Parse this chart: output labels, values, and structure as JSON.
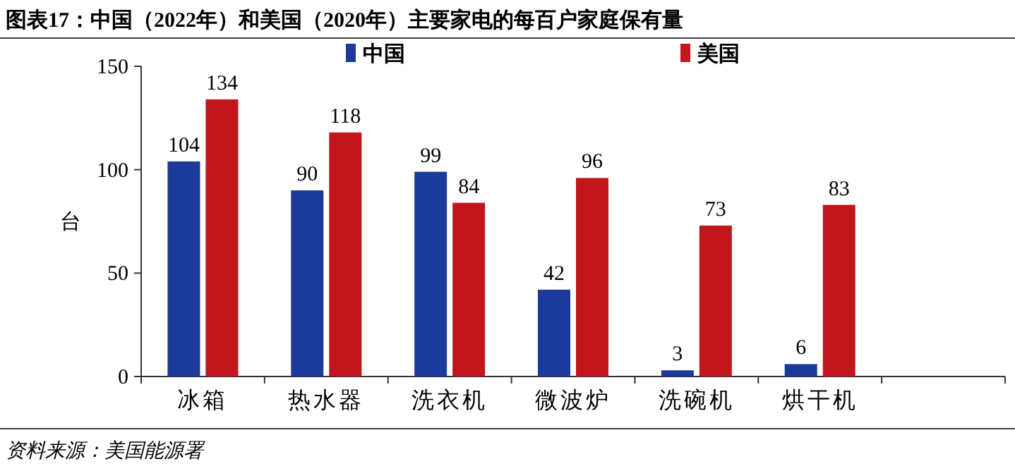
{
  "chart_data": {
    "type": "bar",
    "title": "图表17：中国（2022年）和美国（2020年）主要家电的每百户家庭保有量",
    "ylabel": "台",
    "categories": [
      "冰箱",
      "热水器",
      "洗衣机",
      "微波炉",
      "洗碗机",
      "烘干机",
      null
    ],
    "series": [
      {
        "name": "中国",
        "color": "#1b3a9a",
        "values": [
          104,
          90,
          99,
          42,
          3,
          6,
          null
        ]
      },
      {
        "name": "美国",
        "color": "#c0161c",
        "values": [
          134,
          118,
          84,
          96,
          73,
          83,
          null
        ]
      }
    ],
    "ylim": [
      0,
      150
    ],
    "yticks": [
      0,
      50,
      100,
      150
    ],
    "data_labels": true,
    "legend": "top",
    "grid": false,
    "annotations": [
      "资料来源：美国能源署"
    ]
  }
}
